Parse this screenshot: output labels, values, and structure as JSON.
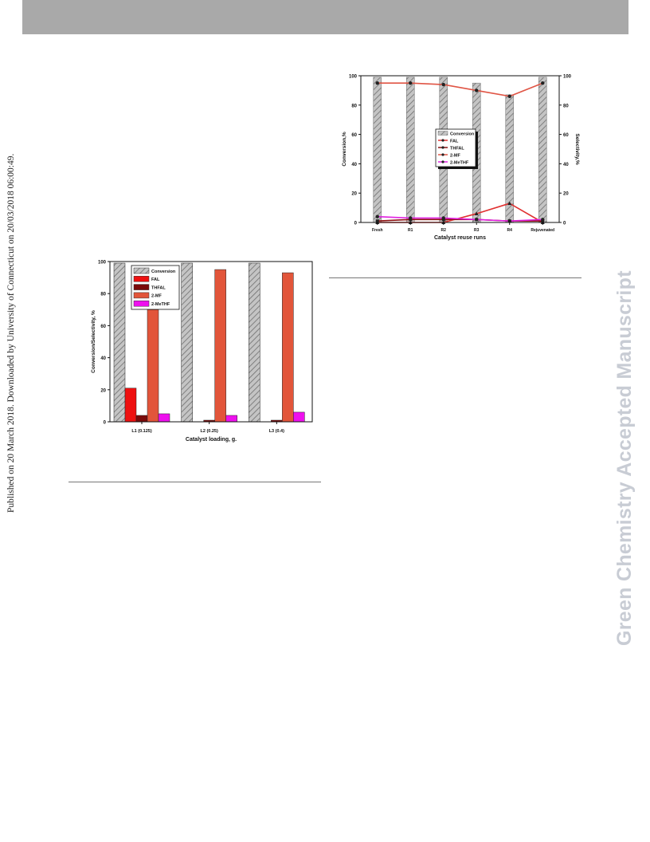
{
  "page": {
    "side_note": "Published on 20 March 2018. Downloaded by University of Connecticut on 20/03/2018 06:00:49.",
    "watermark": "Green Chemistry Accepted Manuscript",
    "colors": {
      "header_bar": "#a9a9a9",
      "watermark": "#c8ccd4"
    }
  },
  "chart_data": [
    {
      "type": "line",
      "categories": [
        "Fresh",
        "R1",
        "R2",
        "R3",
        "R4",
        "Rejuvenated"
      ],
      "xlabel": "Catalyst reuse runs",
      "ylabel": "Conversion,%",
      "y2label": "Selectivity,%",
      "ylim": [
        0,
        100
      ],
      "y2lim": [
        0,
        100
      ],
      "yticks": [
        "0",
        "20",
        "40",
        "60",
        "80",
        "100"
      ],
      "legend_position": "center",
      "bars": {
        "name": "Conversion",
        "values": [
          99,
          99,
          99,
          95,
          87,
          99
        ],
        "pattern": "hatched",
        "color": "#b5b5b5"
      },
      "series": [
        {
          "name": "2-MF",
          "values": [
            95,
            95,
            94,
            90,
            86,
            95
          ],
          "color": "#e05545",
          "marker": "circle"
        },
        {
          "name": "FAL",
          "values": [
            0,
            0,
            0,
            6,
            13,
            0
          ],
          "color": "#e03030",
          "marker": "triangle"
        },
        {
          "name": "THFAL",
          "values": [
            1,
            2,
            2,
            2,
            1,
            1
          ],
          "color": "#8b1010",
          "marker": "square"
        },
        {
          "name": "2-MeTHF",
          "values": [
            4,
            3,
            3,
            2,
            1,
            2
          ],
          "color": "#e020e0",
          "marker": "circle"
        }
      ],
      "legend": [
        "Conversion",
        "FAL",
        "THFAL",
        "2-MF",
        "2-MeTHF"
      ]
    },
    {
      "type": "bar",
      "categories": [
        "L1 (0.125)",
        "L2 (0.25)",
        "L3 (0.4)"
      ],
      "xlabel": "Catalyst loading, g.",
      "ylabel": "Conversion/Selectivity, %",
      "ylim": [
        0,
        100
      ],
      "yticks": [
        "0",
        "20",
        "40",
        "60",
        "80",
        "100"
      ],
      "legend_position": "top-left",
      "series": [
        {
          "name": "Conversion",
          "values": [
            99,
            99,
            99
          ],
          "color": "#b5b5b5",
          "pattern": "hatched"
        },
        {
          "name": "FAL",
          "values": [
            21,
            0,
            0
          ],
          "color": "#ee1010"
        },
        {
          "name": "THFAL",
          "values": [
            4,
            1,
            1
          ],
          "color": "#7a0a0a"
        },
        {
          "name": "2-MF",
          "values": [
            70,
            95,
            93
          ],
          "color": "#e2553a"
        },
        {
          "name": "2-MeTHF",
          "values": [
            5,
            4,
            6
          ],
          "color": "#ee10ee"
        }
      ]
    }
  ]
}
